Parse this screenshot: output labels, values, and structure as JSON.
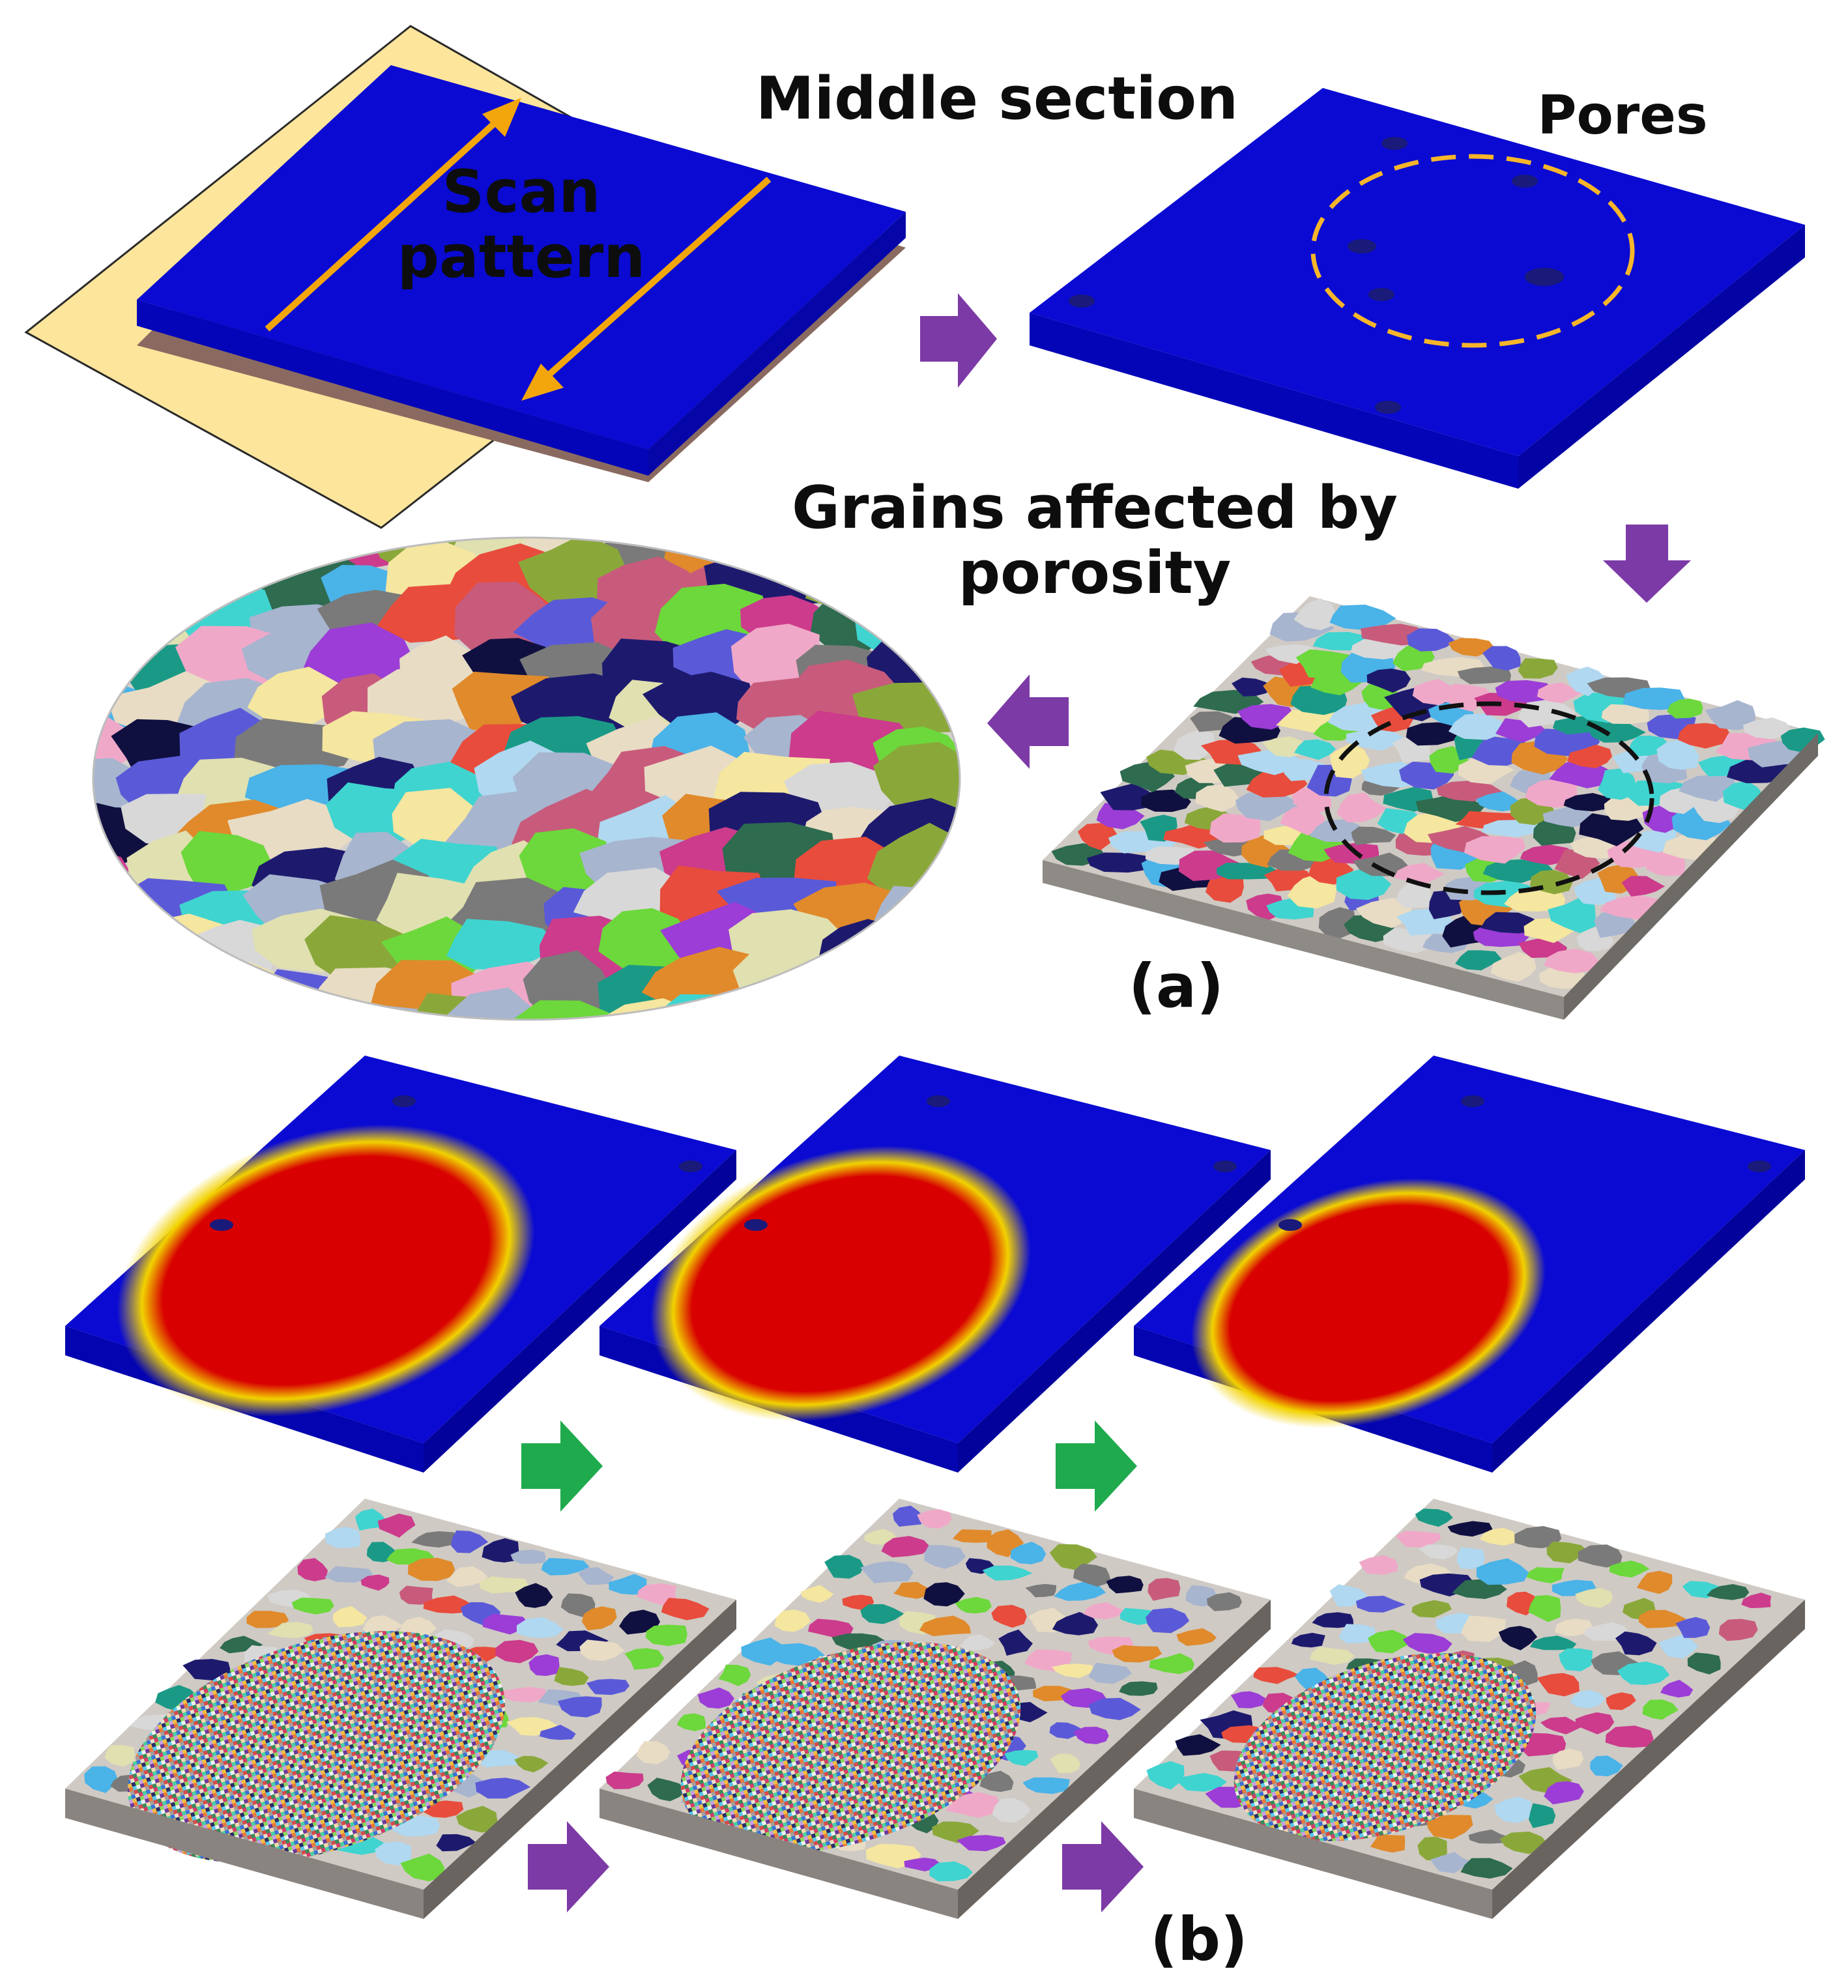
{
  "labels": {
    "middle_section": "Middle section",
    "pores": "Pores",
    "scan_pattern_line1": "Scan",
    "scan_pattern_line2": "pattern",
    "grains_line1": "Grains affected by",
    "grains_line2": "porosity",
    "panel_a": "(a)",
    "panel_b": "(b)"
  },
  "colors": {
    "slab_blue": "#0a0ad2",
    "substrate": "#fde59c",
    "scan_arrow": "#f3a60c",
    "pores_circle": "#f7b52a",
    "step_arrow_purple": "#7c3aa6",
    "step_arrow_green": "#1faa4e",
    "melt_red": "#d80000",
    "melt_yellow": "#f2d200",
    "grain_palette": [
      "#e8dcc4",
      "#a7b5cf",
      "#7a7a7a",
      "#1d1a6e",
      "#e08a2b",
      "#4ab3e8",
      "#6cd83b",
      "#cc3b8c",
      "#2e6b4f",
      "#f0a8c8",
      "#3fd4d0",
      "#9b3dd6",
      "#d8d8d8",
      "#b0d8f0",
      "#e84c3c",
      "#8aa83a",
      "#1a9a86",
      "#f5e6a0",
      "#5a5ad8",
      "#c85b7b",
      "#101040",
      "#e0e0b0"
    ]
  },
  "icons": {
    "step_arrow": "block-arrow-icon",
    "scan_arrow": "double-arrow-icon"
  }
}
